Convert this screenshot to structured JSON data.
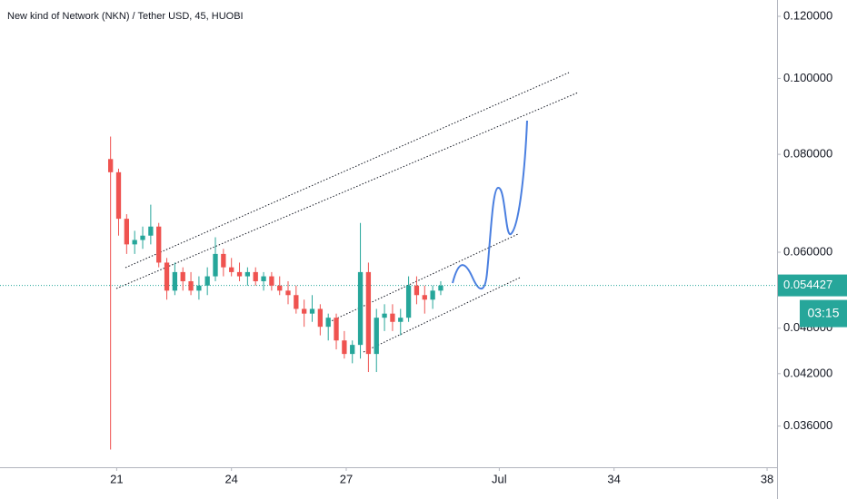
{
  "chart_data": {
    "type": "candlestick",
    "title": "New kind of Network (NKN) / Tether USD, 45, HUOBI",
    "log_scale": true,
    "grid": false,
    "up_color": "#26a69a",
    "down_color": "#ef5350",
    "xlim": [
      17.95,
      38.26
    ],
    "xticks": [
      21,
      24,
      27,
      {
        "value": 31,
        "label": "Jul"
      },
      34,
      38
    ],
    "ylim": [
      0.0319,
      0.1259
    ],
    "yticks": [
      {
        "value": 0.12,
        "label": "0.120000"
      },
      {
        "value": 0.1,
        "label": "0.100000"
      },
      {
        "value": 0.08,
        "label": "0.080000"
      },
      {
        "value": 0.06,
        "label": "0.060000"
      },
      {
        "value": 0.048,
        "label": "0.048000"
      },
      {
        "value": 0.042,
        "label": "0.042000"
      },
      {
        "value": 0.036,
        "label": "0.036000"
      }
    ],
    "last_price": {
      "value": 0.054427,
      "label": "0.054427"
    },
    "countdown": "03:15",
    "x": [
      20.84,
      21.05,
      21.26,
      21.47,
      21.68,
      21.89,
      22.1,
      22.31,
      22.52,
      22.73,
      22.94,
      23.15,
      23.37,
      23.58,
      23.79,
      24.0,
      24.21,
      24.42,
      24.63,
      24.84,
      25.05,
      25.26,
      25.48,
      25.69,
      25.9,
      26.11,
      26.32,
      26.53,
      26.74,
      26.95,
      27.16,
      27.37,
      27.58,
      27.79,
      28.0,
      28.21,
      28.42,
      28.63,
      28.84,
      29.05,
      29.26,
      29.47
    ],
    "open": [
      0.0789,
      0.0759,
      0.0662,
      0.0614,
      0.0622,
      0.063,
      0.0647,
      0.0582,
      0.0536,
      0.0566,
      0.0551,
      0.0536,
      0.0544,
      0.0559,
      0.0597,
      0.0574,
      0.0566,
      0.0559,
      0.0566,
      0.0551,
      0.0559,
      0.0544,
      0.0536,
      0.0529,
      0.0508,
      0.0501,
      0.0508,
      0.0482,
      0.0495,
      0.0463,
      0.0445,
      0.0457,
      0.0566,
      0.0445,
      0.0495,
      0.0501,
      0.0489,
      0.0495,
      0.0544,
      0.0529,
      0.0522,
      0.0536
    ],
    "high": [
      0.0843,
      0.0767,
      0.0671,
      0.0639,
      0.0647,
      0.069,
      0.0654,
      0.059,
      0.0582,
      0.0574,
      0.0566,
      0.0559,
      0.0574,
      0.0627,
      0.0606,
      0.059,
      0.0582,
      0.0574,
      0.0574,
      0.0566,
      0.0566,
      0.0559,
      0.0551,
      0.0544,
      0.0522,
      0.0529,
      0.0515,
      0.0501,
      0.0501,
      0.0476,
      0.0463,
      0.0654,
      0.0582,
      0.0508,
      0.0515,
      0.0515,
      0.0508,
      0.0559,
      0.0559,
      0.0544,
      0.0544,
      0.0551
    ],
    "low": [
      0.0336,
      0.063,
      0.0597,
      0.0597,
      0.0606,
      0.0614,
      0.0574,
      0.0522,
      0.0529,
      0.0536,
      0.0529,
      0.0522,
      0.0529,
      0.0551,
      0.0559,
      0.0559,
      0.0551,
      0.0544,
      0.0544,
      0.0536,
      0.0536,
      0.0529,
      0.0515,
      0.0501,
      0.0482,
      0.0489,
      0.047,
      0.0463,
      0.0451,
      0.0439,
      0.0433,
      0.0439,
      0.0422,
      0.0422,
      0.0476,
      0.0476,
      0.047,
      0.0489,
      0.0515,
      0.0501,
      0.0508,
      0.0529
    ],
    "close": [
      0.0759,
      0.0662,
      0.0614,
      0.0622,
      0.063,
      0.0647,
      0.0582,
      0.0536,
      0.0566,
      0.0551,
      0.0536,
      0.0544,
      0.0559,
      0.0597,
      0.0574,
      0.0566,
      0.0559,
      0.0566,
      0.0551,
      0.0559,
      0.0544,
      0.0536,
      0.0529,
      0.0508,
      0.0501,
      0.0508,
      0.0482,
      0.0495,
      0.0463,
      0.0445,
      0.0457,
      0.0566,
      0.0445,
      0.0495,
      0.0501,
      0.0489,
      0.0495,
      0.0544,
      0.0529,
      0.0522,
      0.0536,
      0.0544
    ]
  }
}
